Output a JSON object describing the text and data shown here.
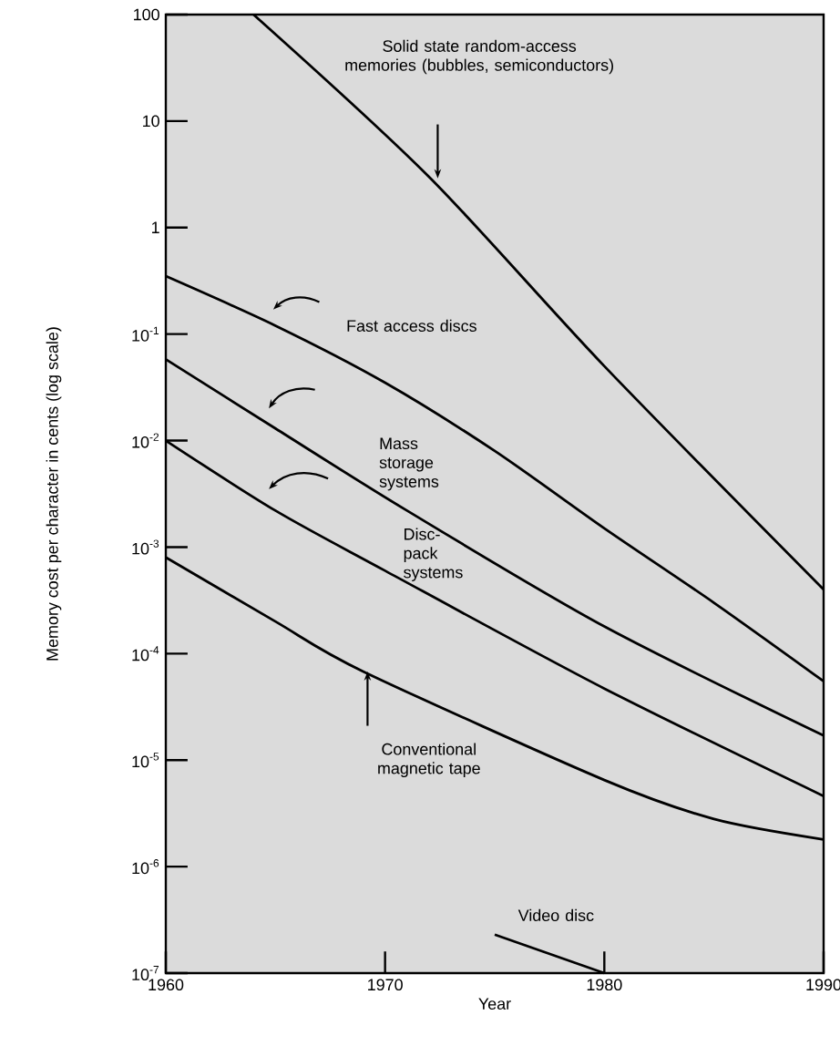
{
  "chart_data": {
    "type": "line",
    "xlabel": "Year",
    "ylabel": "Memory cost per character in cents (log scale)",
    "log": "y",
    "xlim": [
      1960,
      1990
    ],
    "xticks": [
      1960,
      1970,
      1980,
      1990
    ],
    "ylim": [
      1e-07,
      100
    ],
    "yticks": [
      100,
      10,
      1,
      {
        "value": 0.1,
        "label": "10$^{-1}$"
      },
      {
        "value": 0.01,
        "label": "10$^{-2}$"
      },
      {
        "value": 0.001,
        "label": "10$^{-3}$"
      },
      {
        "value": 0.0001,
        "label": "10$^{-4}$"
      },
      {
        "value": 1e-05,
        "label": "10$^{-5}$"
      },
      {
        "value": 1e-06,
        "label": "10$^{-6}$"
      },
      {
        "value": 1e-07,
        "label": "10$^{-7}$"
      }
    ],
    "marker": "none",
    "line_style": "solid",
    "series": [
      {
        "name": "Solid state random-access memories (bubbles, semiconductors)",
        "color": "#000000",
        "x": [
          1964,
          1972,
          1980,
          1990
        ],
        "values": [
          100,
          3,
          0.05,
          0.0004
        ]
      },
      {
        "name": "Fast access discs",
        "color": "#000000",
        "x": [
          1960,
          1965,
          1970,
          1975,
          1980,
          1985,
          1990
        ],
        "values": [
          0.35,
          0.12,
          0.035,
          0.008,
          0.0015,
          0.0003,
          5.5e-05
        ]
      },
      {
        "name": "Mass storage systems",
        "color": "#000000",
        "x": [
          1960,
          1965,
          1971,
          1980,
          1990
        ],
        "values": [
          0.058,
          0.013,
          0.0022,
          0.00018,
          1.7e-05
        ]
      },
      {
        "name": "Disc-pack systems",
        "color": "#000000",
        "x": [
          1960,
          1965,
          1970,
          1980,
          1990
        ],
        "values": [
          0.01,
          0.0022,
          0.0006,
          4.7e-05,
          4.6e-06
        ]
      },
      {
        "name": "Conventional magnetic tape",
        "color": "#000000",
        "x": [
          1960,
          1965,
          1969,
          1980,
          1985,
          1990
        ],
        "values": [
          0.0008,
          0.0002,
          6.8e-05,
          6.5e-06,
          2.8e-06,
          1.8e-06
        ]
      },
      {
        "name": "Video disc",
        "color": "#000000",
        "x": [
          1975,
          1980
        ],
        "values": [
          2.3e-07,
          1e-07
        ]
      }
    ]
  }
}
